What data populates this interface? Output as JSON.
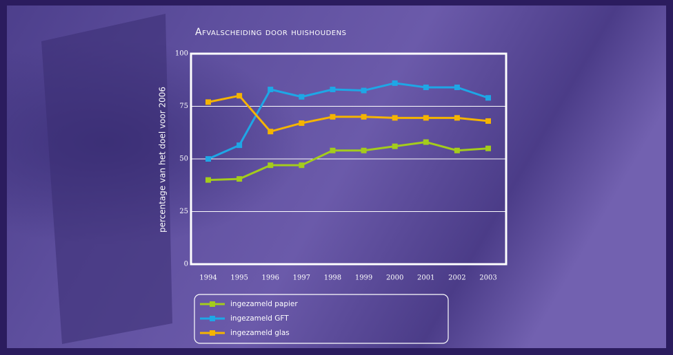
{
  "chart_data": {
    "type": "line",
    "title": "Afvalscheiding door huishoudens",
    "y_label": "percentage van het doel voor 2006",
    "categories": [
      "1994",
      "1995",
      "1996",
      "1997",
      "1998",
      "1999",
      "2000",
      "2001",
      "2002",
      "2003"
    ],
    "series": [
      {
        "name": "ingezameld papier",
        "color": "#a4cc1c",
        "values": [
          40,
          40.5,
          47,
          47,
          54,
          54,
          56,
          58,
          54,
          55
        ]
      },
      {
        "name": "ingezameld GFT",
        "color": "#1ea7e6",
        "values": [
          50,
          56.5,
          83,
          79.5,
          83,
          82.5,
          86,
          84,
          84,
          79
        ]
      },
      {
        "name": "ingezameld glas",
        "color": "#f5b400",
        "values": [
          77,
          80,
          63,
          67,
          70,
          70,
          69.5,
          69.5,
          69.5,
          68
        ]
      }
    ],
    "ylim": [
      0,
      100
    ],
    "yticks": [
      0,
      25,
      50,
      75,
      100
    ],
    "grid": true
  }
}
